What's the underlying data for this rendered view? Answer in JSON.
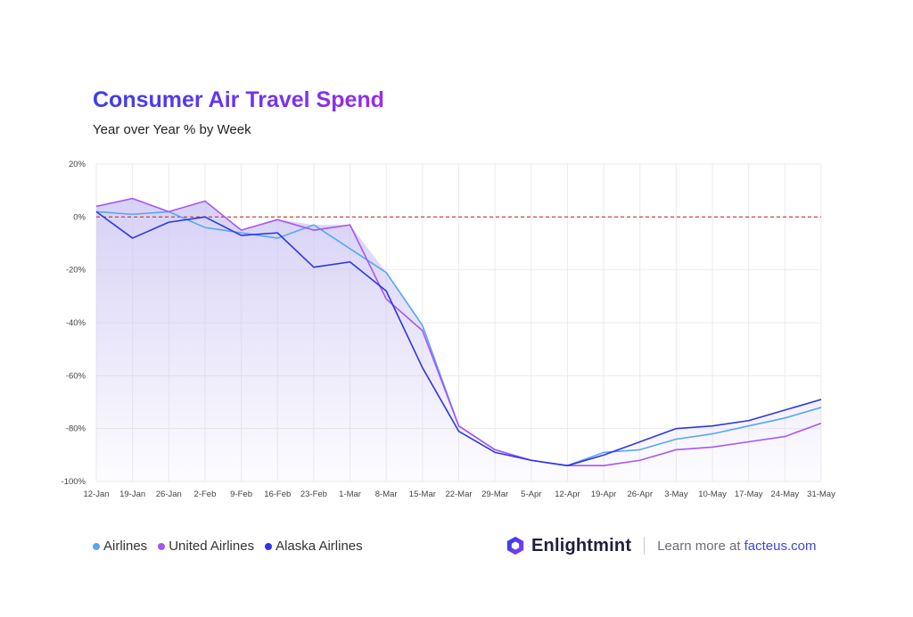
{
  "chart_data": {
    "type": "line",
    "title": "Consumer Air Travel Spend",
    "subtitle": "Year over Year % by Week",
    "categories": [
      "12-Jan",
      "19-Jan",
      "26-Jan",
      "2-Feb",
      "9-Feb",
      "16-Feb",
      "23-Feb",
      "1-Mar",
      "8-Mar",
      "15-Mar",
      "22-Mar",
      "29-Mar",
      "5-Apr",
      "12-Apr",
      "19-Apr",
      "26-Apr",
      "3-May",
      "10-May",
      "17-May",
      "24-May",
      "31-May"
    ],
    "y_ticks": [
      "20%",
      "0%",
      "-20%",
      "-40%",
      "-60%",
      "-80%",
      "-100%"
    ],
    "ylim": [
      -100,
      20
    ],
    "reference_line": 0,
    "grid": true,
    "legend_position": "bottom-left",
    "series": [
      {
        "name": "Airlines",
        "color": "#58a6f5",
        "values": [
          2,
          1,
          2,
          -4,
          -6,
          -8,
          -3,
          -12,
          -21,
          -41,
          -79,
          -88,
          -92,
          -94,
          -89,
          -88,
          -84,
          -82,
          -79,
          -76,
          -72
        ]
      },
      {
        "name": "United Airlines",
        "color": "#a855f7",
        "values": [
          4,
          7,
          2,
          6,
          -5,
          -1,
          -5,
          -3,
          -31,
          -43,
          -79,
          -88,
          -92,
          -94,
          -94,
          -92,
          -88,
          -87,
          -85,
          -83,
          -78
        ]
      },
      {
        "name": "Alaska Airlines",
        "color": "#2e36e6",
        "values": [
          2,
          -8,
          -2,
          0,
          -7,
          -6,
          -19,
          -17,
          -28,
          -57,
          -81,
          -89,
          -92,
          -94,
          -90,
          -85,
          -80,
          -79,
          -77,
          -73,
          -69
        ]
      }
    ]
  },
  "footer": {
    "brand_name": "Enlightmint",
    "cta_text": "Learn more at",
    "cta_link": "facteus.com"
  },
  "colors": {
    "reference_line": "#c0392b",
    "fill_top": "#c9c2f3",
    "grid": "#ebebeb"
  }
}
